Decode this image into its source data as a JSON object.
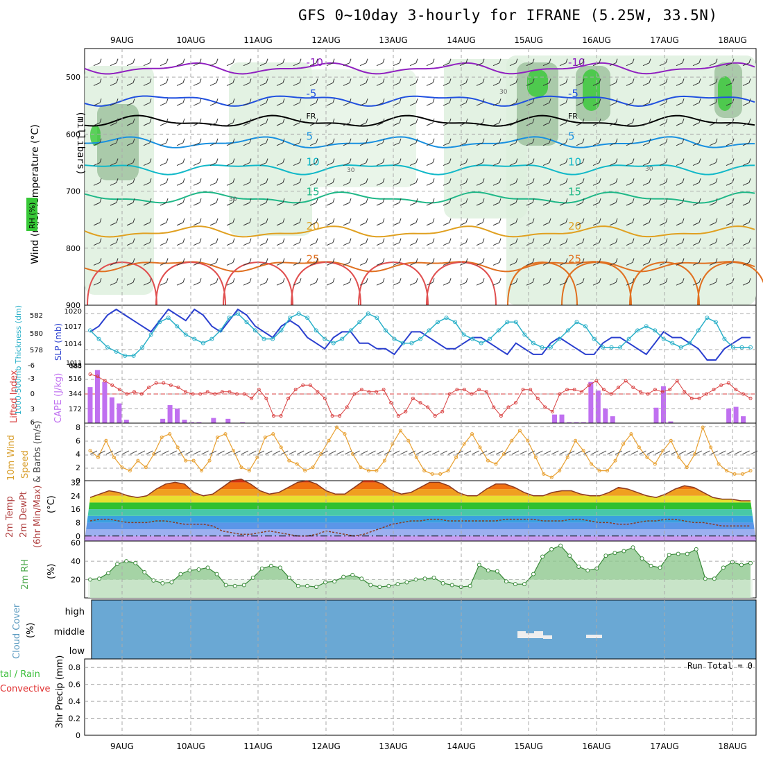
{
  "title": "GFS 0~10day 3-hourly for IFRANE (5.25W, 33.5N)",
  "dates": [
    "9AUG",
    "10AUG",
    "11AUG",
    "12AUG",
    "13AUG",
    "14AUG",
    "15AUG",
    "16AUG",
    "17AUG",
    "18AUG"
  ],
  "colors": {
    "rh": "#37c837",
    "temp": "#d84a4a",
    "wind": "#333333",
    "slp": "#2a3fcf",
    "thick": "#2ab0c8",
    "cape": "#c070f0",
    "li": "#d94040",
    "wind10": "#e8a030",
    "rh2m": "#4ca84c",
    "cloud": "#6aa8d4",
    "precip_total": "#3bbf3b",
    "precip_conv": "#e03030",
    "temp2m": "#8b3a20",
    "dewpt": "#8b3a20"
  },
  "chart_data": [
    {
      "type": "heatmap",
      "panel": "upper-air",
      "ylabel": {
        "wind": "Wind (m/s)",
        "temp": "Temperature (°C)",
        "rh": "RH (%)",
        "units": "(millibars)"
      },
      "yticks": [
        500,
        600,
        700,
        800,
        900
      ],
      "ylim": [
        900,
        450
      ],
      "isotherms": [
        {
          "label": "-10",
          "level": 485,
          "color": "#9020c0"
        },
        {
          "label": "-5",
          "level": 540,
          "color": "#2050e0"
        },
        {
          "label": "FR",
          "level": 578,
          "color": "#000000"
        },
        {
          "label": "5",
          "level": 615,
          "color": "#1890e0"
        },
        {
          "label": "10",
          "level": 660,
          "color": "#10b8c8"
        },
        {
          "label": "15",
          "level": 712,
          "color": "#20b888"
        },
        {
          "label": "20",
          "level": 772,
          "color": "#e0a020"
        },
        {
          "label": "25",
          "level": 830,
          "color": "#e07020"
        }
      ],
      "rh_labels": [
        "30",
        "30",
        "30",
        "30"
      ]
    },
    {
      "type": "line",
      "panel": "slp-thickness",
      "ylabel_left": "1000-500mb Thickness (dm)",
      "ylabel_right": "SLP (mb)",
      "yticks_left": [
        578,
        580,
        582
      ],
      "yticks_right": [
        1014,
        1017,
        1020
      ],
      "extra_ticks": [
        "583",
        "1011"
      ],
      "series": [
        {
          "name": "SLP",
          "values": [
            1016,
            1017,
            1019,
            1020,
            1019,
            1018,
            1017,
            1016,
            1018,
            1020,
            1019,
            1018,
            1020,
            1019,
            1017,
            1016,
            1018,
            1020,
            1019,
            1017,
            1016,
            1015,
            1017,
            1018,
            1017,
            1015,
            1014,
            1013,
            1015,
            1016,
            1016,
            1014,
            1014,
            1013,
            1013,
            1012,
            1014,
            1016,
            1016,
            1015,
            1014,
            1013,
            1013,
            1014,
            1015,
            1015,
            1014,
            1013,
            1012,
            1014,
            1013,
            1012,
            1012,
            1014,
            1015,
            1014,
            1013,
            1012,
            1012,
            1014,
            1015,
            1015,
            1014,
            1013,
            1012,
            1014,
            1016,
            1015,
            1015,
            1014,
            1013,
            1011,
            1011,
            1013,
            1014,
            1015,
            1015
          ]
        },
        {
          "name": "Thickness",
          "values": [
            580.5,
            579.5,
            578.5,
            578,
            577.5,
            577.5,
            578.5,
            580,
            581.5,
            582,
            581,
            580,
            579.5,
            579,
            579.5,
            580.5,
            582,
            582.5,
            581.5,
            580.5,
            579.5,
            579.5,
            580.5,
            582,
            582.5,
            582,
            580.5,
            579.5,
            579,
            579.5,
            580.5,
            581.5,
            582.5,
            582,
            580.5,
            579.5,
            579,
            579,
            579.5,
            580.5,
            581.5,
            582,
            581.5,
            580,
            579.5,
            579,
            579.5,
            580.5,
            581.5,
            581.5,
            580,
            579,
            578.5,
            578.5,
            579.5,
            580.5,
            581.5,
            581,
            579.5,
            578.5,
            578.5,
            578.5,
            579.5,
            580.5,
            581,
            580.5,
            579.5,
            579,
            578.5,
            579,
            580.5,
            582,
            581.5,
            579.5,
            578.5,
            578.5,
            578.5
          ]
        }
      ]
    },
    {
      "type": "bar",
      "panel": "cape-li",
      "ylabel_left": "Lifted Index",
      "ylabel_right": "CAPE (J/kg)",
      "yticks_left": [
        "-6",
        "-3",
        "0",
        "3",
        "6"
      ],
      "yticks_right": [
        "172",
        "344",
        "516",
        "688"
      ],
      "cape": [
        420,
        620,
        480,
        300,
        230,
        40,
        0,
        0,
        0,
        0,
        50,
        210,
        170,
        40,
        10,
        10,
        0,
        60,
        0,
        50,
        0,
        10,
        0,
        0,
        0,
        0,
        0,
        0,
        0,
        0,
        0,
        0,
        0,
        0,
        0,
        0,
        0,
        0,
        0,
        0,
        0,
        0,
        0,
        0,
        0,
        0,
        0,
        0,
        0,
        0,
        0,
        0,
        0,
        0,
        0,
        0,
        0,
        0,
        0,
        0,
        0,
        0,
        0,
        0,
        100,
        100,
        10,
        10,
        10,
        480,
        380,
        170,
        80,
        0,
        0,
        0,
        0,
        0,
        180,
        430,
        20,
        0,
        0,
        0,
        0,
        0,
        0,
        0,
        170,
        190,
        80,
        0
      ],
      "li": [
        -4.5,
        -4,
        -3,
        -2,
        -1,
        0,
        -0.5,
        0,
        -1.5,
        -2.5,
        -2.5,
        -2,
        -1.5,
        -0.5,
        0,
        0,
        -0.5,
        0,
        -0.5,
        -0.5,
        0,
        0,
        1,
        -1,
        1,
        5,
        5,
        1,
        -1,
        -2,
        -2,
        -0.5,
        1,
        5,
        5,
        3,
        0,
        -1,
        -0.5,
        -0.5,
        -1,
        2,
        5,
        4,
        1,
        2,
        3,
        5,
        4,
        0,
        -1,
        -1,
        0,
        -1,
        -0.5,
        3,
        5,
        3,
        2,
        -1,
        -1,
        1,
        3,
        4,
        0,
        -1,
        -1,
        -0.5,
        -2,
        -3,
        -1,
        0,
        -1.5,
        -3,
        -1.5,
        -0.5,
        0,
        -1,
        -0.5,
        -1,
        -3,
        -0.5,
        1,
        1,
        0,
        -1,
        -2,
        -2.5,
        -1,
        0,
        1
      ]
    },
    {
      "type": "line",
      "panel": "wind10",
      "ylabel": "10m Wind Speed & Barbs (m/s)",
      "yticks": [
        0,
        2,
        4,
        6,
        8
      ],
      "series": [
        {
          "name": "Speed",
          "values": [
            4.5,
            3.5,
            6,
            3.5,
            2,
            1.5,
            3,
            2,
            4,
            6.5,
            7,
            5,
            3,
            3,
            1.5,
            3,
            6.5,
            7,
            4.5,
            2,
            1.5,
            3.5,
            6.5,
            7,
            5,
            3,
            2.5,
            1.5,
            2,
            4,
            6,
            8,
            7,
            4,
            2,
            1.5,
            1.5,
            3,
            5.5,
            7.5,
            6,
            3.5,
            1.5,
            1,
            1,
            1.5,
            3.5,
            5.5,
            7,
            5,
            3,
            2.5,
            4,
            6,
            7.5,
            6,
            3.5,
            1,
            0.5,
            1.5,
            3.5,
            6,
            4.5,
            2.5,
            1.5,
            1.5,
            3,
            5.5,
            7,
            5,
            3.5,
            2.5,
            4.5,
            6,
            3.5,
            2,
            4,
            8,
            5,
            2.5,
            1.5,
            1,
            1,
            1.5
          ]
        }
      ]
    },
    {
      "type": "area",
      "panel": "temp2m",
      "ylabel": "2m Temp 2m DewPt (6hr Min/Max) (°C)",
      "yticks": [
        0,
        8,
        16,
        24,
        32
      ],
      "series": [
        {
          "name": "Temp",
          "values": [
            23,
            25,
            27,
            26,
            24,
            23,
            24,
            28,
            31,
            32,
            31,
            26,
            24,
            25,
            29,
            33,
            34,
            31,
            27,
            25,
            26,
            29,
            32,
            33,
            31,
            27,
            25,
            25,
            29,
            33,
            33,
            31,
            27,
            25,
            26,
            29,
            32,
            32,
            30,
            26,
            24,
            24,
            28,
            31,
            31,
            29,
            26,
            24,
            24,
            26,
            27,
            27,
            25,
            24,
            24,
            26,
            29,
            28,
            26,
            24,
            23,
            25,
            28,
            30,
            29,
            26,
            23,
            22,
            22,
            21,
            21
          ]
        },
        {
          "name": "DewPt",
          "values": [
            9,
            10,
            10,
            9,
            8,
            8,
            8,
            9,
            9,
            8,
            7,
            7,
            7,
            6,
            3,
            2,
            1,
            1,
            2,
            3,
            2,
            1,
            0,
            0,
            1,
            3,
            2,
            1,
            0,
            1,
            3,
            5,
            7,
            8,
            9,
            9,
            10,
            10,
            9,
            9,
            9,
            9,
            9,
            9,
            10,
            10,
            10,
            10,
            9,
            9,
            9,
            10,
            10,
            9,
            8,
            8,
            7,
            7,
            8,
            9,
            9,
            10,
            10,
            9,
            8,
            8,
            7,
            6,
            6,
            6,
            6
          ]
        }
      ]
    },
    {
      "type": "area",
      "panel": "rh2m",
      "ylabel": "2m RH (%)",
      "yticks": [
        20,
        40,
        60
      ],
      "series": [
        {
          "name": "RH",
          "values": [
            20,
            21,
            27,
            37,
            40,
            38,
            28,
            19,
            16,
            17,
            26,
            30,
            31,
            33,
            26,
            14,
            13,
            14,
            22,
            32,
            35,
            33,
            22,
            13,
            13,
            12,
            17,
            18,
            23,
            25,
            21,
            14,
            12,
            13,
            15,
            17,
            20,
            21,
            22,
            16,
            14,
            12,
            13,
            36,
            30,
            29,
            18,
            15,
            15,
            26,
            45,
            53,
            57,
            46,
            34,
            30,
            32,
            46,
            49,
            51,
            55,
            43,
            35,
            33,
            47,
            48,
            48,
            53,
            21,
            21,
            33,
            39,
            36,
            38
          ]
        }
      ]
    },
    {
      "type": "heatmap",
      "panel": "cloud",
      "ylabel": "Cloud Cover (%)",
      "yticks": [
        "high",
        "middle",
        "low"
      ]
    },
    {
      "type": "bar",
      "panel": "precip",
      "ylabel": "3hr Precip (mm)",
      "legend": [
        "Total / Rain",
        "Convective"
      ],
      "annotation": "Run Total = 0",
      "yticks": [
        "0",
        "0.2",
        "0.4",
        "0.6",
        "0.8"
      ],
      "values": []
    }
  ]
}
